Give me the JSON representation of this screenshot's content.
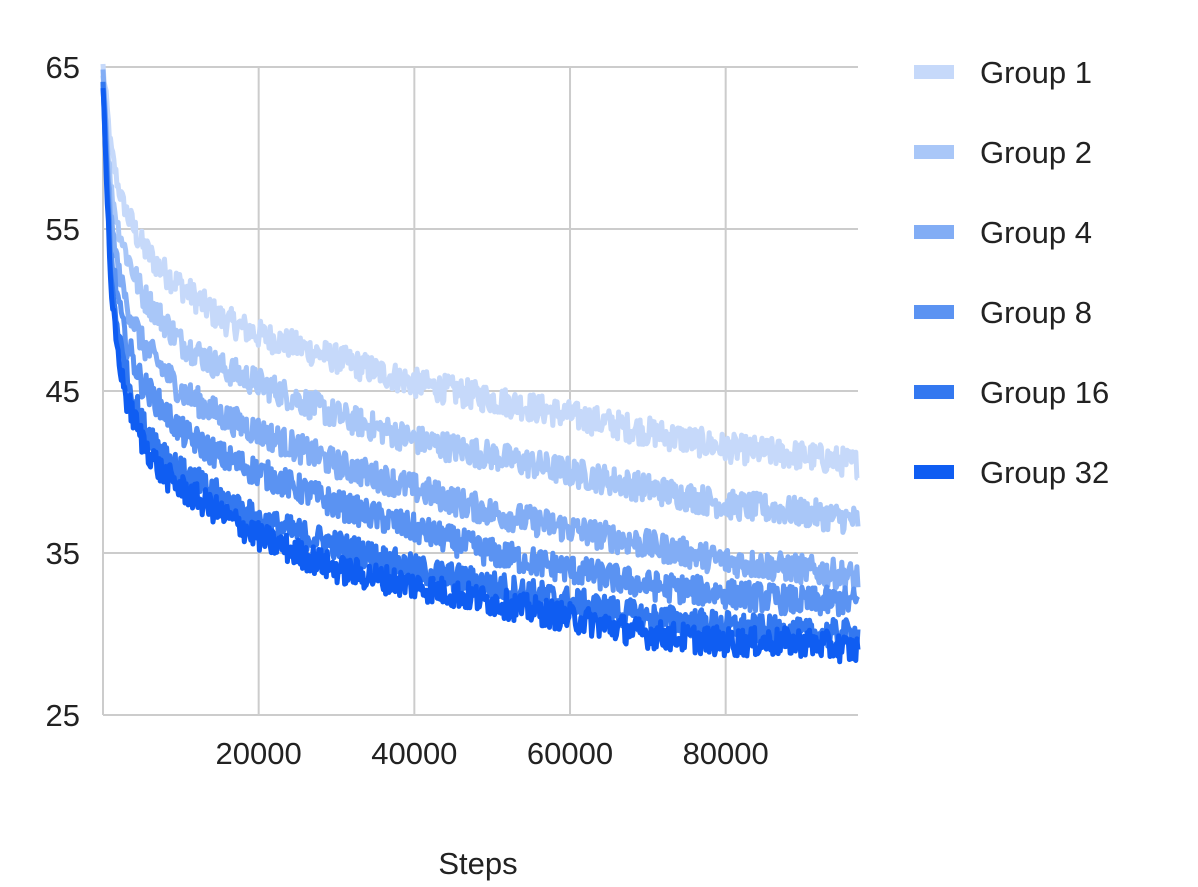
{
  "chart_data": {
    "type": "line",
    "title": "",
    "xlabel": "Steps",
    "ylabel": "",
    "xlim": [
      0,
      97000
    ],
    "ylim": [
      25,
      65
    ],
    "x_ticks": [
      20000,
      40000,
      60000,
      80000
    ],
    "x_tick_labels": [
      "20000",
      "40000",
      "60000",
      "80000"
    ],
    "y_ticks": [
      25,
      35,
      45,
      55,
      65
    ],
    "y_tick_labels": [
      "25",
      "35",
      "45",
      "55",
      "65"
    ],
    "grid": true,
    "legend_position": "right",
    "x": [
      0,
      1000,
      2000,
      3000,
      5000,
      7500,
      10000,
      15000,
      20000,
      30000,
      40000,
      50000,
      60000,
      70000,
      80000,
      90000,
      97000
    ],
    "series": [
      {
        "name": "Group 1",
        "color": "#c6d9fa",
        "values": [
          65,
          60,
          57.5,
          56,
          54,
          52.5,
          51.5,
          49.5,
          48.5,
          47,
          45.5,
          44.5,
          43.5,
          42.5,
          41.5,
          41,
          40.5
        ]
      },
      {
        "name": "Group 2",
        "color": "#a9c7f8",
        "values": [
          64.5,
          57.5,
          55,
          53.5,
          51,
          49.5,
          48,
          46.5,
          45.5,
          43.5,
          42,
          41,
          40,
          39,
          38,
          37.5,
          37
        ]
      },
      {
        "name": "Group 4",
        "color": "#82adf5",
        "values": [
          64.5,
          55.5,
          52.5,
          50.5,
          48,
          46.5,
          45,
          43.5,
          42.5,
          40.5,
          39,
          37.5,
          36.5,
          35.5,
          34.5,
          34,
          33.5
        ]
      },
      {
        "name": "Group 8",
        "color": "#5b93f2",
        "values": [
          64,
          53.5,
          50.5,
          48,
          45.5,
          44,
          42.5,
          41,
          40,
          38,
          36.5,
          35,
          34,
          33,
          32.5,
          32,
          32
        ]
      },
      {
        "name": "Group 16",
        "color": "#3378f0",
        "values": [
          64,
          52,
          48.5,
          46,
          43,
          41.5,
          40,
          38.5,
          37,
          35.5,
          34,
          33,
          32,
          31,
          30.5,
          30,
          30
        ]
      },
      {
        "name": "Group 32",
        "color": "#0f5df2",
        "values": [
          64,
          51,
          47,
          44.5,
          42,
          40,
          39,
          37.5,
          36,
          34,
          33,
          32,
          31,
          30,
          29.5,
          29.5,
          29
        ]
      }
    ]
  }
}
